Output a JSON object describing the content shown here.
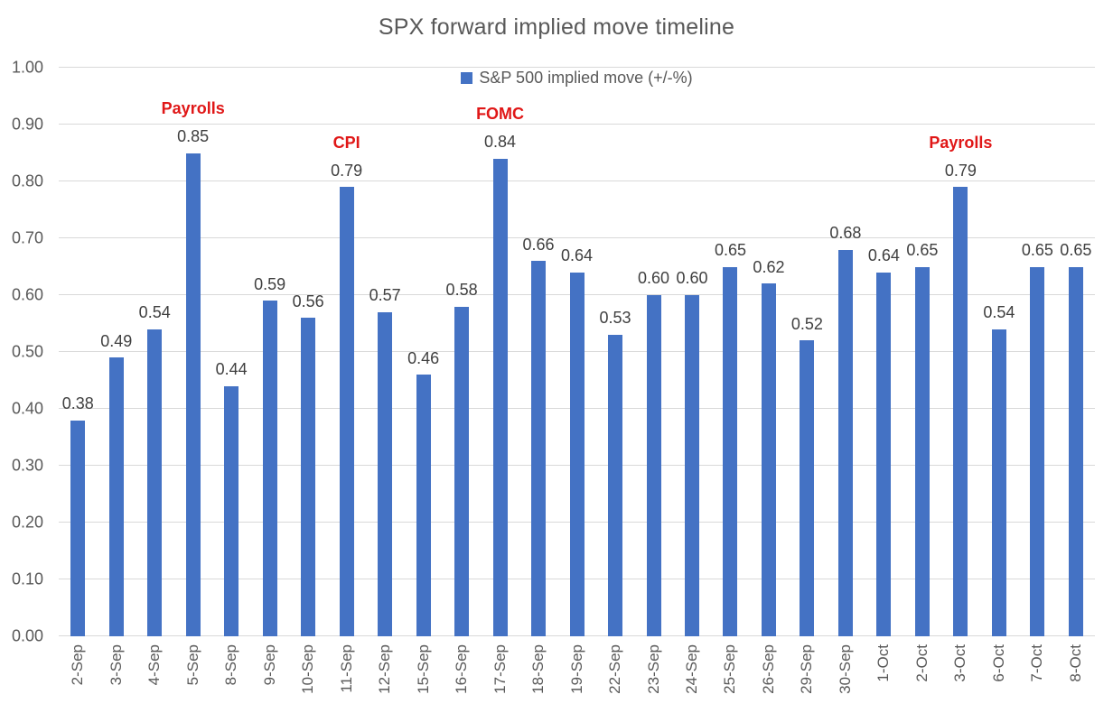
{
  "chart_data": {
    "type": "bar",
    "title": "SPX forward implied move timeline",
    "legend": {
      "label": "S&P 500 implied move (+/-%)",
      "position": "top-center",
      "swatch_icon": "blue-square-icon"
    },
    "categories": [
      "2-Sep",
      "3-Sep",
      "4-Sep",
      "5-Sep",
      "8-Sep",
      "9-Sep",
      "10-Sep",
      "11-Sep",
      "12-Sep",
      "15-Sep",
      "16-Sep",
      "17-Sep",
      "18-Sep",
      "19-Sep",
      "22-Sep",
      "23-Sep",
      "24-Sep",
      "25-Sep",
      "26-Sep",
      "29-Sep",
      "30-Sep",
      "1-Oct",
      "2-Oct",
      "3-Oct",
      "6-Oct",
      "7-Oct",
      "8-Oct"
    ],
    "values": [
      0.38,
      0.49,
      0.54,
      0.85,
      0.44,
      0.59,
      0.56,
      0.79,
      0.57,
      0.46,
      0.58,
      0.84,
      0.66,
      0.64,
      0.53,
      0.6,
      0.6,
      0.65,
      0.62,
      0.52,
      0.68,
      0.64,
      0.65,
      0.79,
      0.54,
      0.65,
      0.65
    ],
    "value_label_decimals": 2,
    "annotations": [
      {
        "category": "5-Sep",
        "label": "Payrolls"
      },
      {
        "category": "11-Sep",
        "label": "CPI"
      },
      {
        "category": "17-Sep",
        "label": "FOMC"
      },
      {
        "category": "3-Oct",
        "label": "Payrolls"
      }
    ],
    "xlabel": "",
    "ylabel": "",
    "ylim": [
      0,
      1.0
    ],
    "ytick_step": 0.1,
    "ytick_decimals": 2,
    "grid": true,
    "colors": {
      "bar": "#4472c4",
      "annotation": "#e01717",
      "gridline": "#d9d9d9",
      "axis_text": "#595959",
      "value_label": "#3f3f3f",
      "title": "#595959"
    }
  }
}
